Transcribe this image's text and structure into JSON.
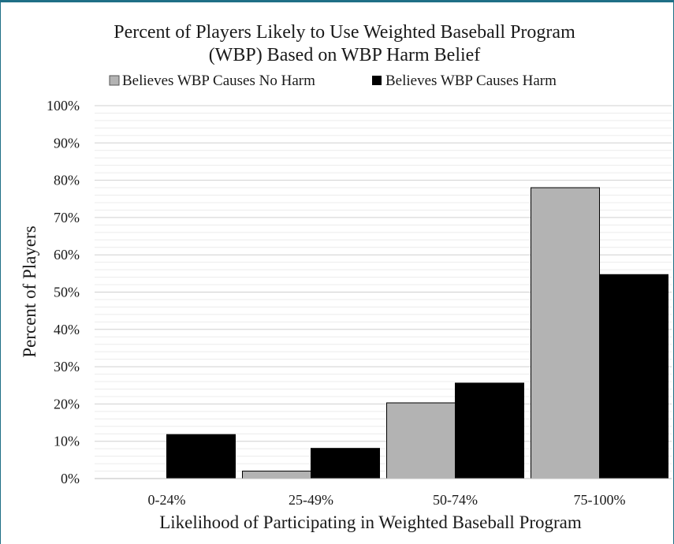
{
  "chart_data": {
    "type": "bar",
    "title_lines": [
      "Percent of Players Likely to Use Weighted Baseball Program",
      "(WBP) Based on WBP Harm Belief"
    ],
    "xlabel": "Likelihood of Participating in Weighted Baseball Program",
    "ylabel": "Percent of Players",
    "categories": [
      "0-24%",
      "25-49%",
      "50-74%",
      "75-100%"
    ],
    "series": [
      {
        "name": "Believes WBP Causes No Harm",
        "color": "#b3b3b3",
        "values": [
          0,
          2,
          20.3,
          78
        ]
      },
      {
        "name": "Believes WBP Causes Harm",
        "color": "#000000",
        "values": [
          11.8,
          8.1,
          25.6,
          54.7
        ]
      }
    ],
    "ylim": [
      0,
      100
    ],
    "yticks": [
      0,
      10,
      20,
      30,
      40,
      50,
      60,
      70,
      80,
      90,
      100
    ],
    "ytick_labels": [
      "0%",
      "10%",
      "20%",
      "30%",
      "40%",
      "50%",
      "60%",
      "70%",
      "80%",
      "90%",
      "100%"
    ],
    "grid": true,
    "legend_position": "top"
  }
}
